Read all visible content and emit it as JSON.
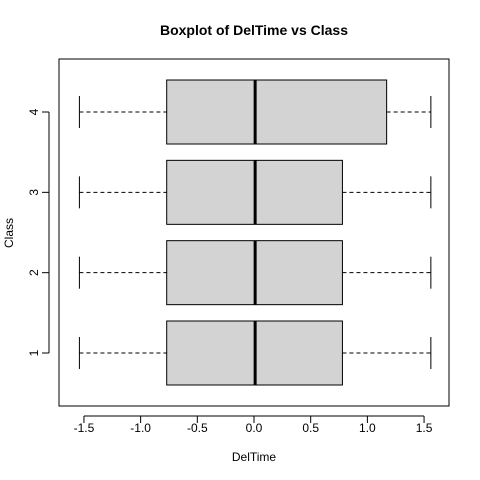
{
  "chart_data": {
    "type": "boxplot",
    "orientation": "horizontal",
    "title": "Boxplot of DelTime vs Class",
    "xlabel": "DelTime",
    "ylabel": "Class",
    "xlim": [
      -1.72,
      1.72
    ],
    "x_ticks": [
      -1.5,
      -1.0,
      -0.5,
      0.0,
      0.5,
      1.0,
      1.5
    ],
    "x_tick_labels": [
      "-1.5",
      "-1.0",
      "-0.5",
      "0.0",
      "0.5",
      "1.0",
      "1.5"
    ],
    "categories": [
      "1",
      "2",
      "3",
      "4"
    ],
    "grid": false,
    "box_fill": "#d3d3d3",
    "boxes": [
      {
        "category": "1",
        "min": -1.54,
        "q1": -0.77,
        "median": 0.01,
        "q3": 0.78,
        "max": 1.56
      },
      {
        "category": "2",
        "min": -1.54,
        "q1": -0.77,
        "median": 0.01,
        "q3": 0.78,
        "max": 1.56
      },
      {
        "category": "3",
        "min": -1.54,
        "q1": -0.77,
        "median": 0.01,
        "q3": 0.78,
        "max": 1.56
      },
      {
        "category": "4",
        "min": -1.54,
        "q1": -0.77,
        "median": 0.01,
        "q3": 1.17,
        "max": 1.56
      }
    ]
  }
}
